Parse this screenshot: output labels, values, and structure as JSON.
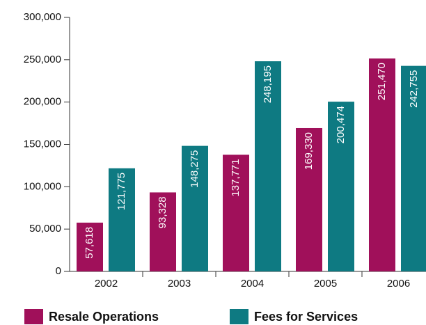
{
  "chart_data": {
    "type": "bar",
    "categories": [
      "2002",
      "2003",
      "2004",
      "2005",
      "2006"
    ],
    "series": [
      {
        "name": "Resale Operations",
        "color": "#a0105a",
        "values": [
          57618,
          93328,
          137771,
          169330,
          251470
        ],
        "value_labels": [
          "57,618",
          "93,328",
          "137,771",
          "169,330",
          "251,470"
        ]
      },
      {
        "name": "Fees for Services",
        "color": "#0e7a82",
        "values": [
          121775,
          148275,
          248195,
          200474,
          242755
        ],
        "value_labels": [
          "121,775",
          "148,275",
          "248,195",
          "200,474",
          "242,755"
        ]
      }
    ],
    "ylim": [
      0,
      300000
    ],
    "yticks": [
      0,
      {
        "value": 50000,
        "label": "50,000"
      },
      {
        "value": 100000,
        "label": "100,000"
      },
      {
        "value": 150000,
        "label": "150,000"
      },
      {
        "value": 200000,
        "label": "200,000"
      },
      {
        "value": 250000,
        "label": "250,000"
      },
      {
        "value": 300000,
        "label": "300,000"
      }
    ]
  }
}
